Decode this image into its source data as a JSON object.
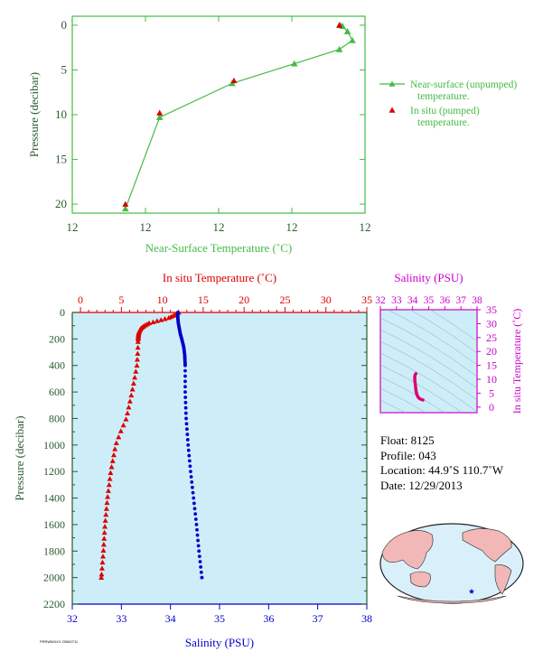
{
  "chart_data": [
    {
      "type": "scatter",
      "xlabel": "Near-Surface Temperature (˚C)",
      "ylabel": "Pressure (decibar)",
      "xlim": [
        11.4,
        12.05
      ],
      "ylim": [
        21,
        -1
      ],
      "x_tick_labels": [
        "12",
        "12",
        "12",
        "12",
        "12"
      ],
      "y_ticks": [
        0,
        5,
        10,
        15,
        20
      ],
      "legend": {
        "placement": "right",
        "entries": [
          {
            "label": "Near-surface (unpumped) temperature.",
            "color": "#44bb44",
            "marker": "triangle-line"
          },
          {
            "label": "In situ (pumped) temperature.",
            "color": "#dd0000",
            "marker": "triangle"
          }
        ]
      },
      "series": [
        {
          "key": "near_surface",
          "color": "#44bb44",
          "points": [
            [
              11.518,
              20.5
            ],
            [
              11.594,
              10.3
            ],
            [
              11.755,
              6.5
            ],
            [
              11.893,
              4.3
            ],
            [
              11.993,
              2.7
            ],
            [
              12.022,
              1.7
            ],
            [
              12.011,
              0.7
            ],
            [
              12.0,
              0.1
            ],
            [
              11.995,
              0.0
            ]
          ]
        },
        {
          "key": "in_situ",
          "color": "#dd0000",
          "points": [
            [
              11.518,
              20.0
            ],
            [
              11.594,
              9.8
            ],
            [
              11.759,
              6.2
            ],
            [
              11.993,
              0.0
            ]
          ]
        }
      ]
    },
    {
      "type": "scatter",
      "top_xlabel": "In situ Temperature (˚C)",
      "bottom_xlabel": "Salinity (PSU)",
      "ylabel": "Pressure (decibar)",
      "temp_xlim": [
        -1,
        35
      ],
      "temp_ticks": [
        0,
        5,
        10,
        15,
        20,
        25,
        30,
        35
      ],
      "sal_xlim": [
        32,
        38
      ],
      "sal_ticks": [
        32,
        33,
        34,
        35,
        36,
        37,
        38
      ],
      "ylim": [
        2200,
        0
      ],
      "y_ticks": [
        0,
        200,
        400,
        600,
        800,
        1000,
        1200,
        1400,
        1600,
        1800,
        2000,
        2200
      ],
      "series": [
        {
          "key": "temperature",
          "color": "#dd0000",
          "marker": "triangle",
          "profile": [
            [
              0,
              12.0
            ],
            [
              20,
              11.5
            ],
            [
              40,
              10.8
            ],
            [
              60,
              9.6
            ],
            [
              80,
              8.4
            ],
            [
              100,
              7.8
            ],
            [
              120,
              7.4
            ],
            [
              140,
              7.2
            ],
            [
              160,
              7.1
            ],
            [
              200,
              7.05
            ],
            [
              300,
              7.0
            ],
            [
              400,
              6.9
            ],
            [
              600,
              6.3
            ],
            [
              800,
              5.6
            ],
            [
              900,
              4.9
            ],
            [
              1000,
              4.3
            ],
            [
              1200,
              3.7
            ],
            [
              1400,
              3.3
            ],
            [
              1600,
              3.0
            ],
            [
              1800,
              2.8
            ],
            [
              2000,
              2.55
            ]
          ]
        },
        {
          "key": "salinity",
          "color": "#0000cc",
          "marker": "dot",
          "profile": [
            [
              0,
              34.15
            ],
            [
              40,
              34.15
            ],
            [
              80,
              34.16
            ],
            [
              120,
              34.18
            ],
            [
              160,
              34.2
            ],
            [
              200,
              34.23
            ],
            [
              260,
              34.27
            ],
            [
              320,
              34.29
            ],
            [
              400,
              34.3
            ],
            [
              600,
              34.3
            ],
            [
              800,
              34.32
            ],
            [
              1000,
              34.36
            ],
            [
              1200,
              34.41
            ],
            [
              1400,
              34.47
            ],
            [
              1600,
              34.53
            ],
            [
              1800,
              34.58
            ],
            [
              2000,
              34.64
            ]
          ]
        }
      ]
    },
    {
      "type": "scatter",
      "title": "Salinity (PSU)",
      "xlabel": "Salinity (PSU)",
      "ylabel": "In situ Temperature (˚C)",
      "xlim": [
        32,
        38
      ],
      "x_ticks": [
        32,
        33,
        34,
        35,
        36,
        37,
        38
      ],
      "ylim": [
        -2,
        35
      ],
      "y_ticks": [
        0,
        5,
        10,
        15,
        20,
        25,
        30,
        35
      ],
      "color": "#dd0077",
      "ts_curve": [
        [
          34.2,
          12.0
        ],
        [
          34.15,
          11.5
        ],
        [
          34.13,
          10.5
        ],
        [
          34.15,
          9.0
        ],
        [
          34.18,
          7.5
        ],
        [
          34.2,
          6.5
        ],
        [
          34.22,
          5.5
        ],
        [
          34.27,
          4.5
        ],
        [
          34.32,
          3.8
        ],
        [
          34.4,
          3.2
        ],
        [
          34.48,
          2.9
        ],
        [
          34.58,
          2.7
        ],
        [
          34.64,
          2.55
        ]
      ]
    }
  ],
  "float_info": {
    "float": "Float:  8125",
    "profile": "Profile:  043",
    "location": "Location:  44.9˚S  110.7˚W",
    "date": "Date:  12/29/2013"
  },
  "footer": "PRRWMXXX 20060711"
}
